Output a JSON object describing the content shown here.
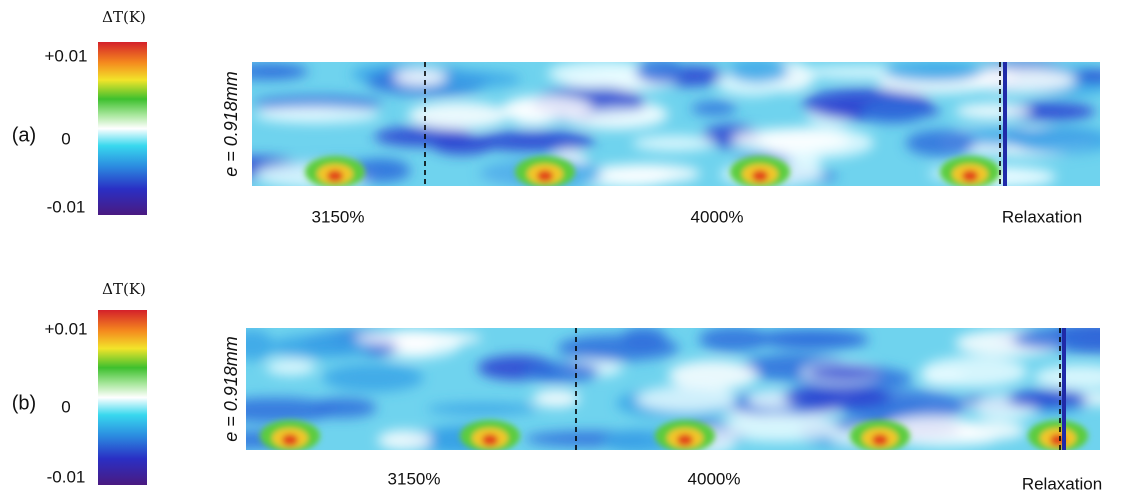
{
  "panels": [
    {
      "label": "(a)",
      "colorbar": {
        "title": "ΔT(K)",
        "ticks": [
          "+0.01",
          "0",
          "-0.01"
        ]
      },
      "y_label": "e = 0.918mm",
      "sections": [
        "3150%",
        "4000%",
        "Relaxation"
      ]
    },
    {
      "label": "(b)",
      "colorbar": {
        "title": "ΔT(K)",
        "ticks": [
          "+0.01",
          "0",
          "-0.01"
        ]
      },
      "y_label": "e = 0.918mm",
      "sections": [
        "3150%",
        "4000%",
        "Relaxation"
      ]
    }
  ]
}
